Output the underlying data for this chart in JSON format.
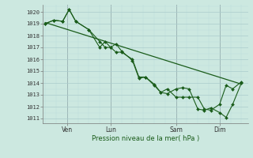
{
  "xlabel": "Pression niveau de la mer( hPa )",
  "ylim": [
    1010.6,
    1020.6
  ],
  "yticks": [
    1011,
    1012,
    1013,
    1014,
    1015,
    1016,
    1017,
    1018,
    1019,
    1020
  ],
  "bg_color": "#cce8e0",
  "grid_major_color": "#aacccc",
  "grid_minor_color": "#bbdddd",
  "line_color": "#1a5c1a",
  "line1_x": [
    0,
    0.4,
    0.8,
    1.1,
    1.4,
    2.0,
    2.5,
    2.75,
    3.0,
    3.25,
    3.5,
    4.0,
    4.3,
    4.6,
    5.0,
    5.3,
    5.6,
    6.0,
    6.3,
    6.6,
    7.0,
    7.3,
    7.6,
    8.0,
    8.3,
    8.6,
    9.0
  ],
  "line1_y": [
    1019.0,
    1019.3,
    1019.2,
    1020.2,
    1019.2,
    1018.5,
    1017.0,
    1017.5,
    1017.0,
    1017.3,
    1016.7,
    1015.9,
    1014.4,
    1014.5,
    1013.8,
    1013.2,
    1013.1,
    1013.5,
    1013.6,
    1013.5,
    1011.8,
    1011.7,
    1011.9,
    1011.5,
    1011.1,
    1012.2,
    1014.0
  ],
  "line2_x": [
    0,
    0.4,
    0.8,
    1.1,
    1.4,
    2.0,
    2.5,
    2.75,
    3.0,
    3.25,
    3.5,
    4.0,
    4.3,
    4.6,
    5.0,
    5.3,
    5.6,
    6.0,
    6.3,
    6.6,
    7.0,
    7.3,
    7.6,
    8.0,
    8.3,
    8.6,
    9.0
  ],
  "line2_y": [
    1019.0,
    1019.3,
    1019.2,
    1020.2,
    1019.2,
    1018.5,
    1017.5,
    1017.0,
    1017.0,
    1016.6,
    1016.6,
    1016.0,
    1014.5,
    1014.5,
    1013.9,
    1013.2,
    1013.5,
    1012.8,
    1012.8,
    1012.8,
    1012.8,
    1011.8,
    1011.7,
    1012.2,
    1013.8,
    1013.5,
    1014.1
  ],
  "trend_x": [
    0,
    9.0
  ],
  "trend_y": [
    1019.1,
    1013.9
  ],
  "xtick_positions": [
    1,
    3,
    6,
    8
  ],
  "xtick_labels": [
    "Ven",
    "Lun",
    "Sam",
    "Dim"
  ],
  "xvlines": [
    1,
    3,
    6,
    8
  ],
  "xlim": [
    -0.1,
    9.3
  ]
}
